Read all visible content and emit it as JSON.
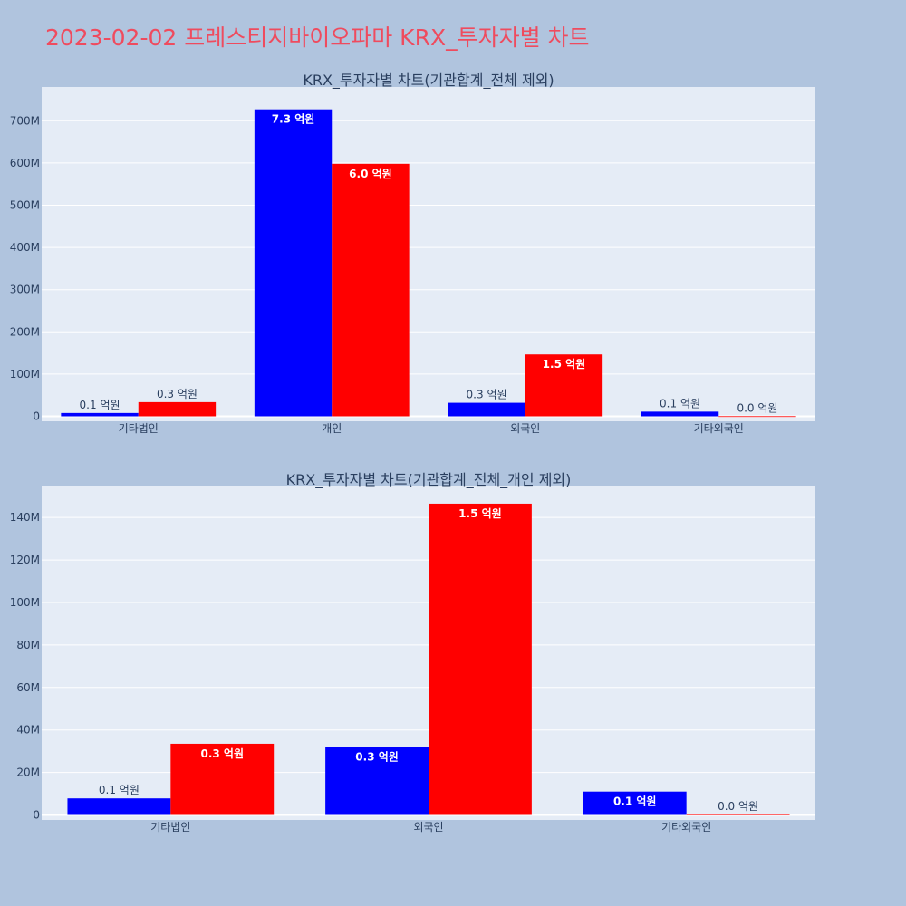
{
  "title": "2023-02-02 프레스티지바이오파마 KRX_투자자별 차트",
  "colors": {
    "page_bg": "#b0c4de",
    "plot_bg": "#e5ecf6",
    "grid": "#ffffff",
    "title": "#ef4b5e",
    "sell": "#0000ff",
    "buy": "#ff0000"
  },
  "chart_data": [
    {
      "type": "bar",
      "title": "KRX_투자자별 차트(기관합계_전체 제외)",
      "categories": [
        "기타법인",
        "개인",
        "외국인",
        "기타외국인"
      ],
      "ylim": [
        0,
        780000000
      ],
      "yticks": [
        0,
        100000000,
        200000000,
        300000000,
        400000000,
        500000000,
        600000000,
        700000000
      ],
      "ytick_labels": [
        "0",
        "100M",
        "200M",
        "300M",
        "400M",
        "500M",
        "600M",
        "700M"
      ],
      "grid": true,
      "series": [
        {
          "color": "#0000ff",
          "values": [
            7800000,
            727000000,
            32000000,
            11000000
          ],
          "labels": [
            "0.1 억원",
            "7.3 억원",
            "0.3 억원",
            "0.1 억원"
          ]
        },
        {
          "color": "#ff0000",
          "values": [
            33500000,
            598000000,
            146500000,
            300000
          ],
          "labels": [
            "0.3 억원",
            "6.0 억원",
            "1.5 억원",
            "0.0 억원"
          ]
        }
      ]
    },
    {
      "type": "bar",
      "title": "KRX_투자자별 차트(기관합계_전체_개인 제외)",
      "categories": [
        "기타법인",
        "외국인",
        "기타외국인"
      ],
      "ylim": [
        0,
        155000000
      ],
      "yticks": [
        0,
        20000000,
        40000000,
        60000000,
        80000000,
        100000000,
        120000000,
        140000000
      ],
      "ytick_labels": [
        "0",
        "20M",
        "40M",
        "60M",
        "80M",
        "100M",
        "120M",
        "140M"
      ],
      "grid": true,
      "series": [
        {
          "color": "#0000ff",
          "values": [
            7800000,
            32000000,
            11000000
          ],
          "labels": [
            "0.1 억원",
            "0.3 억원",
            "0.1 억원"
          ]
        },
        {
          "color": "#ff0000",
          "values": [
            33500000,
            146500000,
            300000
          ],
          "labels": [
            "0.3 억원",
            "1.5 억원",
            "0.0 억원"
          ]
        }
      ]
    }
  ]
}
